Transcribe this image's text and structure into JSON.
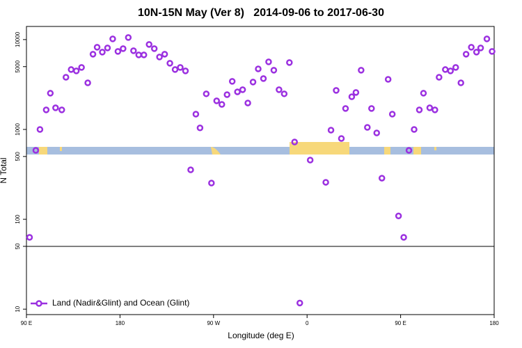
{
  "chart_data": {
    "type": "scatter",
    "title": "10N-15N May (Ver 8)   2014-09-06 to 2017-06-30",
    "xlabel": "Longitude (deg E)",
    "ylabel": "N Total",
    "xlim": [
      90,
      540
    ],
    "xticks": [
      {
        "value": 90,
        "label": "90 E"
      },
      180,
      {
        "value": 270,
        "label": "90 W"
      },
      {
        "value": 360,
        "label": "0"
      },
      {
        "value": 450,
        "label": "90 E"
      },
      {
        "value": 540,
        "label": "180"
      }
    ],
    "ylim": [
      8.7,
      14000
    ],
    "yscale": "log",
    "yticks": [
      10,
      50,
      100,
      500,
      1000,
      5000,
      10000
    ],
    "reference_line": 50,
    "legend": "bottom-left",
    "series": [
      {
        "name": "Land (Nadir&Glint) and Ocean (Glint)",
        "color": "#9b30e0",
        "x": [
          93,
          99,
          103,
          109,
          113,
          118,
          124,
          128,
          133,
          138,
          143,
          149,
          154,
          158,
          163,
          168,
          173,
          178,
          183,
          188,
          193,
          198,
          203,
          208,
          213,
          218,
          223,
          228,
          233,
          238,
          243,
          248,
          253,
          257,
          263,
          268,
          273,
          278,
          283,
          288,
          293,
          298,
          303,
          308,
          313,
          318,
          323,
          328,
          333,
          338,
          343,
          348,
          353,
          363,
          378,
          383,
          388,
          393,
          397,
          403,
          407,
          412,
          418,
          422,
          427,
          432,
          438,
          442,
          448,
          453,
          458,
          463,
          468,
          472,
          478,
          483,
          487,
          493,
          498,
          503,
          508,
          513,
          518,
          523,
          527,
          533,
          538
        ],
        "values": [
          63,
          585,
          1000,
          1650,
          2530,
          1740,
          1650,
          3810,
          4640,
          4480,
          4900,
          3300,
          6880,
          8220,
          7250,
          8070,
          10180,
          7380,
          7930,
          10550,
          7520,
          6750,
          6750,
          8830,
          7930,
          6400,
          6880,
          5450,
          4640,
          4900,
          4480,
          355,
          1480,
          1040,
          2490,
          253,
          2080,
          1900,
          2440,
          3430,
          2620,
          2770,
          1970,
          3370,
          4720,
          3680,
          5650,
          4560,
          2770,
          2490,
          5550,
          725,
          11.7,
          456,
          258,
          982,
          2720,
          793,
          1710,
          2310,
          2580,
          4560,
          1055,
          1710,
          914,
          287,
          3610,
          1480,
          109,
          63,
          585,
          1000,
          1650,
          2530,
          1740,
          1650,
          3810,
          4640,
          4480,
          4900,
          3300,
          6880,
          8220,
          7250,
          8070,
          10180,
          7380
        ]
      }
    ]
  }
}
